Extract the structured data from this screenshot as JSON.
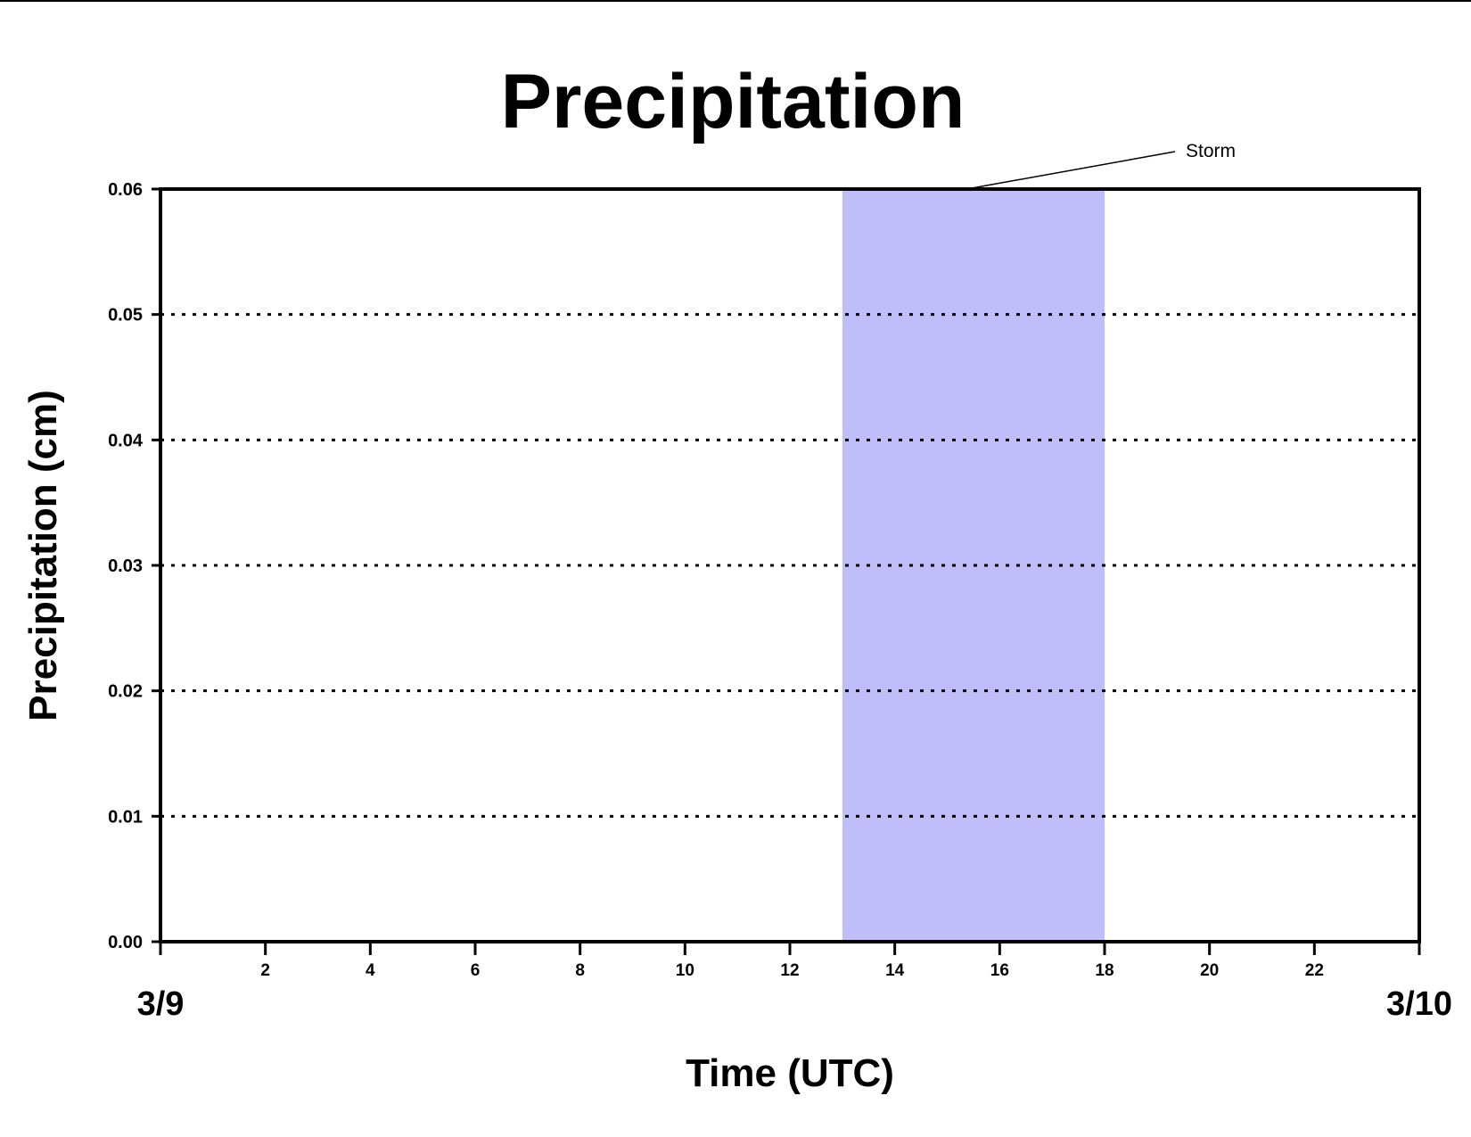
{
  "chart_data": {
    "type": "line",
    "title": "Precipitation",
    "xlabel": "Time (UTC)",
    "ylabel": "Precipitation (cm)",
    "xlim": [
      0,
      24
    ],
    "ylim": [
      0,
      0.06
    ],
    "x_ticks": [
      2,
      4,
      6,
      8,
      10,
      12,
      14,
      16,
      18,
      20,
      22
    ],
    "y_ticks": [
      "0.00",
      "0.01",
      "0.02",
      "0.03",
      "0.04",
      "0.05",
      "0.06"
    ],
    "date_labels": {
      "start": "3/9",
      "end": "3/10"
    },
    "grid": "horizontal dotted",
    "series": [
      {
        "color": "#b22222",
        "x": [
          0,
          24
        ],
        "y": [
          0,
          0
        ]
      }
    ],
    "shaded_regions": [
      {
        "label": "Storm",
        "x_start": 13,
        "x_end": 18,
        "color": "#c0bdfb"
      }
    ]
  },
  "colors": {
    "storm_fill": "#c0bdfb",
    "series_line": "#b22222",
    "axis": "#000000",
    "top_rule": "#000000"
  }
}
